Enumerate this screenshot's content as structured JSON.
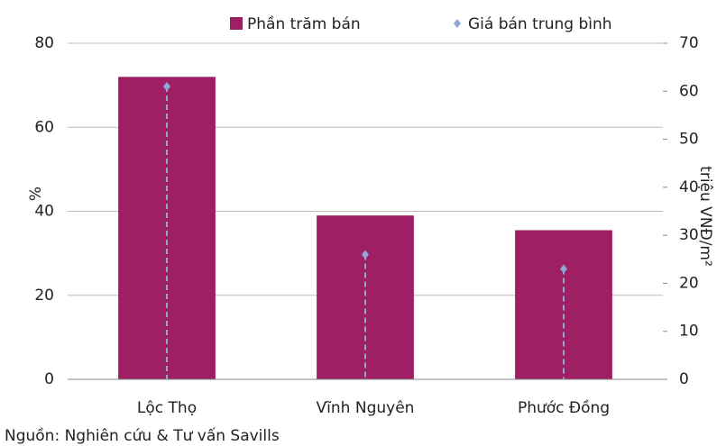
{
  "chart_data": {
    "type": "bar",
    "categories": [
      "Lộc Thọ",
      "Vĩnh Nguyên",
      "Phước Đồng"
    ],
    "series": [
      {
        "name": "Phần trăm bán",
        "type": "bar",
        "color": "#9e1f63",
        "values": [
          72,
          39,
          35.5
        ]
      },
      {
        "name": "Giá bán trung bình",
        "type": "scatter",
        "axis": "y2",
        "color": "#8fa8d8",
        "values": [
          61,
          26,
          23
        ]
      }
    ],
    "ylabel": "%",
    "y2label": "triệu VNĐ/m²",
    "ylim": [
      0,
      80
    ],
    "yticks": [
      0,
      20,
      40,
      60,
      80
    ],
    "y2lim": [
      0,
      70
    ],
    "y2ticks": [
      0,
      10,
      20,
      30,
      40,
      50,
      60,
      70
    ],
    "grid": true,
    "legend": "top",
    "source": "Nguồn: Nghiên cứu & Tư vấn Savills"
  }
}
